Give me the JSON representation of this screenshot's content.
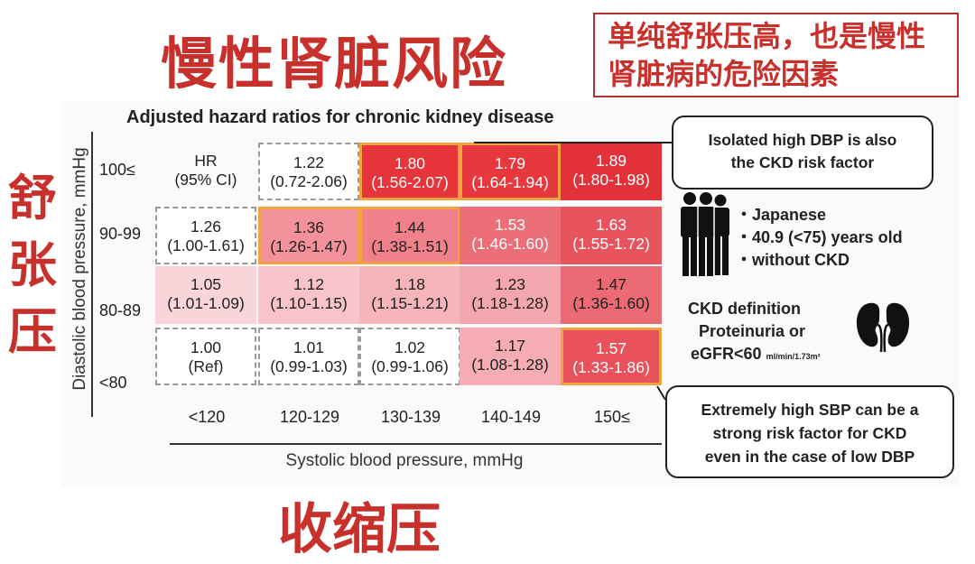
{
  "overlay": {
    "main_title": "慢性肾脏风险",
    "y_chinese": [
      "舒",
      "张",
      "压"
    ],
    "x_chinese": "收缩压",
    "note_lines": [
      "单纯舒张压高，也是慢性",
      "肾脏病的危险因素"
    ]
  },
  "chart_data": {
    "type": "table",
    "title": "Adjusted hazard ratios for chronic kidney disease",
    "xlabel": "Systolic blood pressure, mmHg",
    "ylabel": "Diastolic blood pressure, mmHg",
    "columns": [
      "<120",
      "120-129",
      "130-139",
      "140-149",
      "150≤"
    ],
    "rows": [
      "100≤",
      "90-99",
      "80-89",
      "<80"
    ],
    "header_cell": [
      "HR",
      "(95% CI)"
    ],
    "cells": [
      [
        null,
        {
          "hr": "1.22",
          "ci": "(0.72-2.06)",
          "color": "#ffffff",
          "text": "#222222",
          "style": "dashed"
        },
        {
          "hr": "1.80",
          "ci": "(1.56-2.07)",
          "color": "#e6343b",
          "text": "#ffffff",
          "style": "highlight"
        },
        {
          "hr": "1.79",
          "ci": "(1.64-1.94)",
          "color": "#e6383d",
          "text": "#ffffff",
          "style": "highlight"
        },
        {
          "hr": "1.89",
          "ci": "(1.80-1.98)",
          "color": "#e3313a",
          "text": "#ffffff",
          "style": "plain"
        }
      ],
      [
        {
          "hr": "1.26",
          "ci": "(1.00-1.61)",
          "color": "#ffffff",
          "text": "#222222",
          "style": "dashed"
        },
        {
          "hr": "1.36",
          "ci": "(1.26-1.47)",
          "color": "#f3929a",
          "text": "#222222",
          "style": "highlight"
        },
        {
          "hr": "1.44",
          "ci": "(1.38-1.51)",
          "color": "#f08089",
          "text": "#222222",
          "style": "highlight"
        },
        {
          "hr": "1.53",
          "ci": "(1.46-1.60)",
          "color": "#ec6e77",
          "text": "#ffffff",
          "style": "plain"
        },
        {
          "hr": "1.63",
          "ci": "(1.55-1.72)",
          "color": "#e8545d",
          "text": "#ffffff",
          "style": "plain"
        }
      ],
      [
        {
          "hr": "1.05",
          "ci": "(1.01-1.09)",
          "color": "#f9d4d8",
          "text": "#222222",
          "style": "plain"
        },
        {
          "hr": "1.12",
          "ci": "(1.10-1.15)",
          "color": "#f8c4ca",
          "text": "#222222",
          "style": "plain"
        },
        {
          "hr": "1.18",
          "ci": "(1.15-1.21)",
          "color": "#f6b4bb",
          "text": "#222222",
          "style": "plain"
        },
        {
          "hr": "1.23",
          "ci": "(1.18-1.28)",
          "color": "#f4a6ae",
          "text": "#222222",
          "style": "plain"
        },
        {
          "hr": "1.47",
          "ci": "(1.36-1.60)",
          "color": "#ec6a73",
          "text": "#222222",
          "style": "plain"
        }
      ],
      [
        {
          "hr": "1.00",
          "ci": "(Ref)",
          "color": "#ffffff",
          "text": "#222222",
          "style": "dashed"
        },
        {
          "hr": "1.01",
          "ci": "(0.99-1.03)",
          "color": "#ffffff",
          "text": "#222222",
          "style": "dashed"
        },
        {
          "hr": "1.02",
          "ci": "(0.99-1.06)",
          "color": "#ffffff",
          "text": "#222222",
          "style": "dashed"
        },
        {
          "hr": "1.17",
          "ci": "(1.08-1.28)",
          "color": "#f5acb3",
          "text": "#222222",
          "style": "plain"
        },
        {
          "hr": "1.57",
          "ci": "(1.33-1.86)",
          "color": "#e9525b",
          "text": "#ffffff",
          "style": "highlight"
        }
      ]
    ],
    "callout_top": [
      "Isolated high DBP is also",
      "the CKD risk factor"
    ],
    "callout_bottom": [
      "Extremely high SBP can be a",
      "strong risk factor for CKD",
      "even in the case of low DBP"
    ],
    "bullets": [
      "・Japanese",
      "・40.9 (<75) years old",
      "・without CKD"
    ],
    "ckd_definition": {
      "line1": "CKD definition",
      "line2": "Proteinuria or",
      "line3_main": "eGFR<60",
      "line3_unit": "ml/min/1.73m²"
    },
    "colors": {
      "highlight_border": "#f0a340",
      "chinese_text": "#c8302c"
    },
    "icons": [
      "people-icon",
      "kidney-icon"
    ]
  }
}
